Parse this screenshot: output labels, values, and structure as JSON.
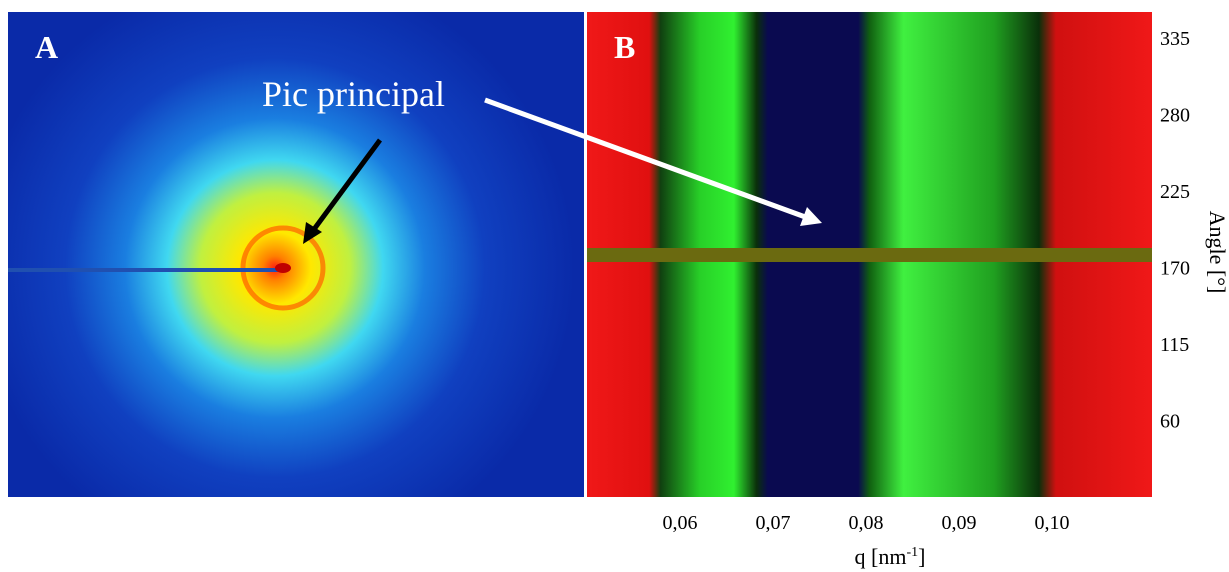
{
  "panel_a": {
    "label": "A"
  },
  "panel_b": {
    "label": "B"
  },
  "annotation": "Pic principal",
  "x_axis": {
    "title": "q [nm",
    "title_sup": "-1",
    "title_end": "]",
    "ticks": [
      "0,06",
      "0,07",
      "0,08",
      "0,09",
      "0,10"
    ]
  },
  "y_axis": {
    "title": "Angle [°]",
    "ticks": [
      "335",
      "280",
      "225",
      "170",
      "115",
      "60"
    ]
  }
}
